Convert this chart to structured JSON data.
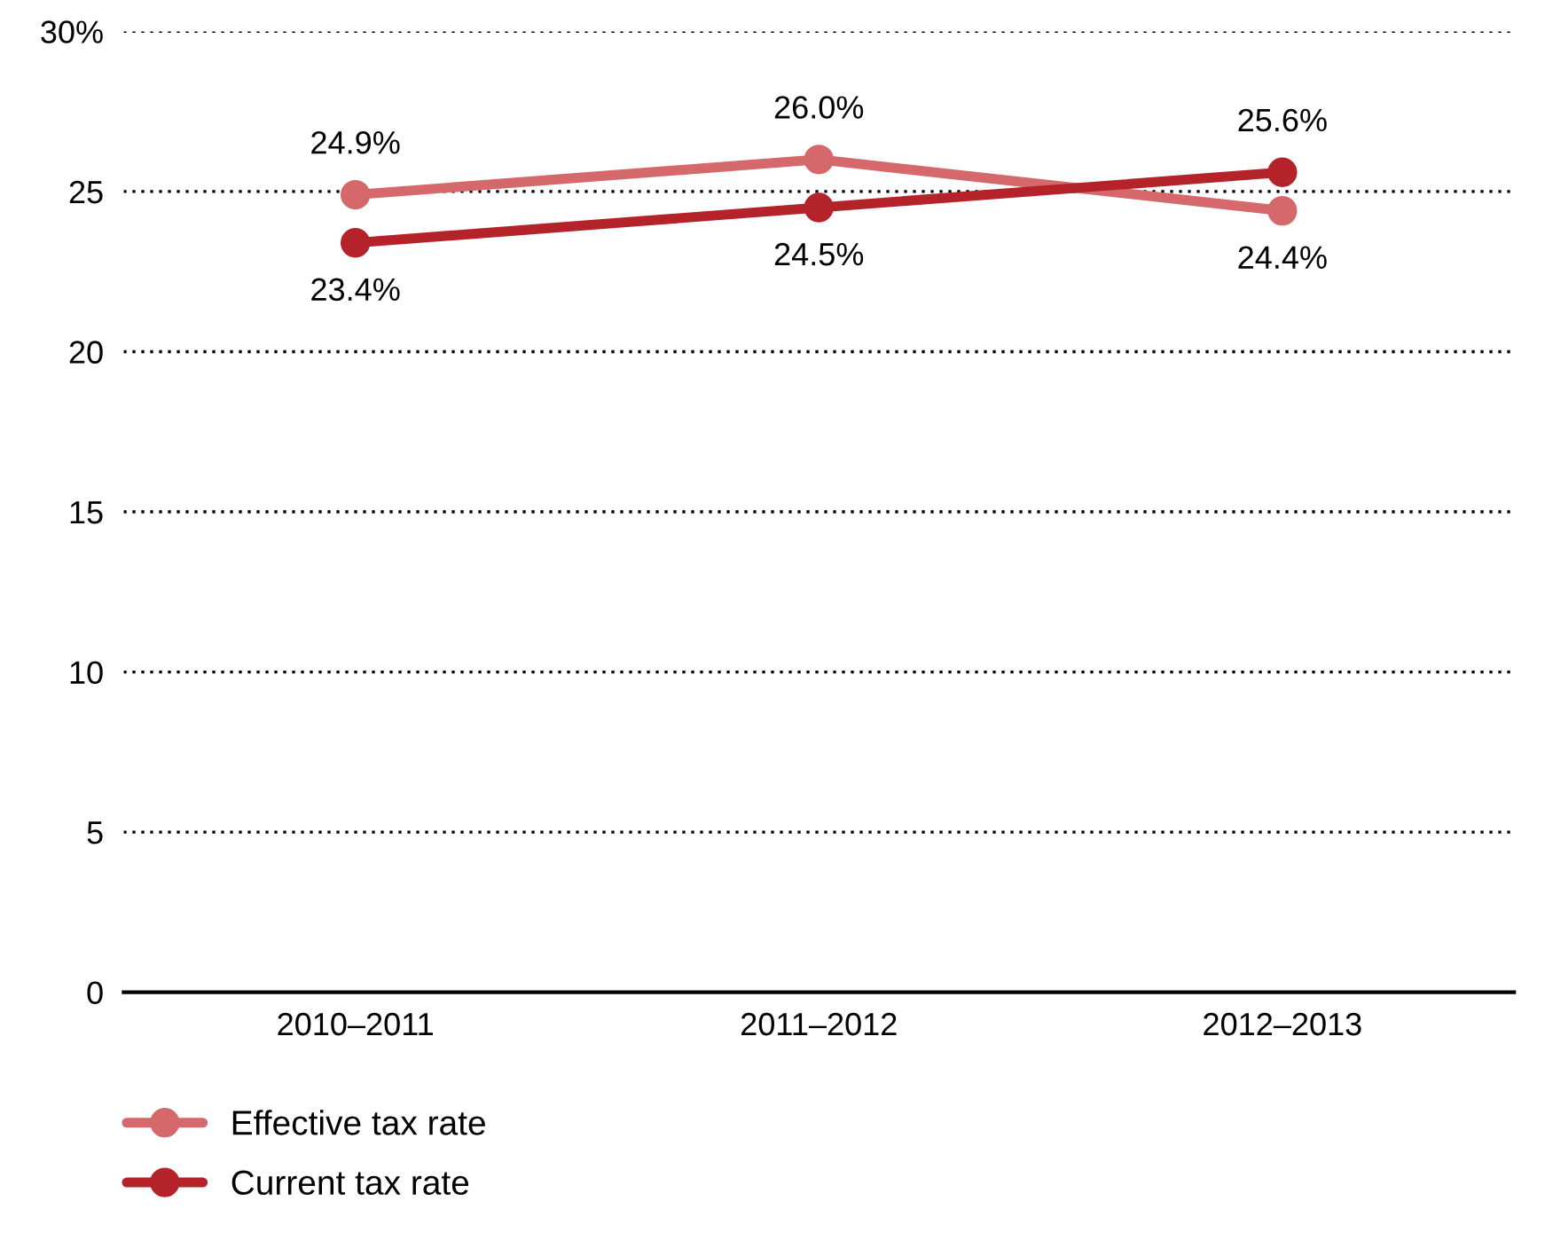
{
  "chart_data": {
    "type": "line",
    "categories": [
      "2010–2011",
      "2011–2012",
      "2012–2013"
    ],
    "series": [
      {
        "name": "Effective tax rate",
        "color": "#d4686a",
        "values": [
          24.9,
          26.0,
          24.4
        ],
        "value_labels": [
          "24.9%",
          "26.0%",
          "24.4%"
        ]
      },
      {
        "name": "Current tax rate",
        "color": "#b5232a",
        "values": [
          23.4,
          24.5,
          25.6
        ],
        "value_labels": [
          "23.4%",
          "24.5%",
          "25.6%"
        ]
      }
    ],
    "ylim": [
      0,
      30
    ],
    "yticks": [
      0,
      5,
      10,
      15,
      20,
      25,
      {
        "value": 30,
        "label": "30%"
      }
    ],
    "grid": "y",
    "legend": "bottom left",
    "marker": "circle",
    "line_style": "solid"
  }
}
